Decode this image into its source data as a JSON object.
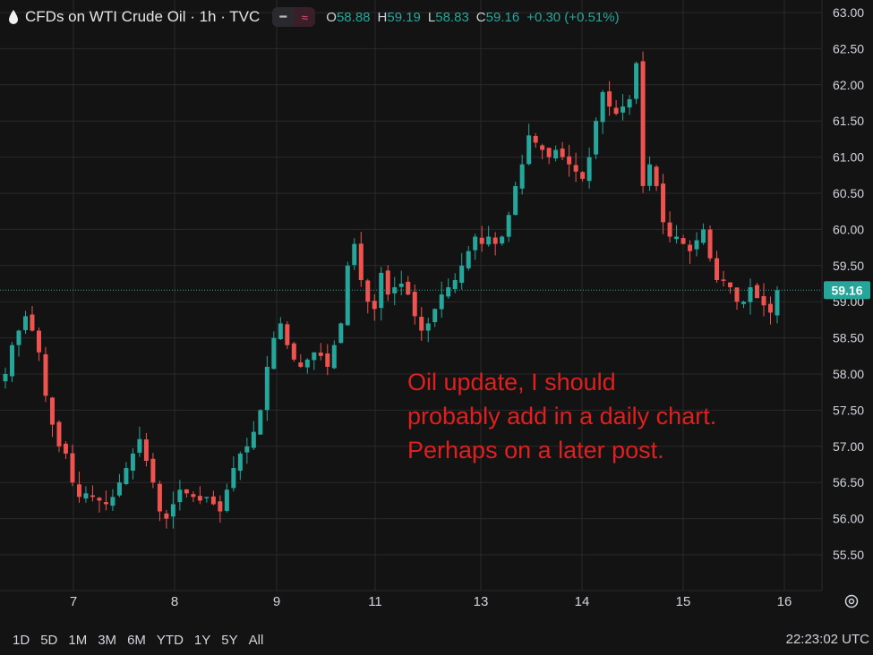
{
  "legend": {
    "title": "CFDs on WTI Crude Oil · 1h · TVC",
    "open_label": "O",
    "open": "58.88",
    "high_label": "H",
    "high": "59.19",
    "low_label": "L",
    "low": "58.83",
    "close_label": "C",
    "close": "59.16",
    "change": "+0.30 (+0.51%)"
  },
  "annotation": [
    "Oil update, I should",
    "probably add in a daily chart.",
    "Perhaps on a later post."
  ],
  "bottom_bar": {
    "ranges": [
      "1D",
      "5D",
      "1M",
      "3M",
      "6M",
      "YTD",
      "1Y",
      "5Y",
      "All"
    ],
    "clock": "22:23:02 UTC"
  },
  "colors": {
    "up": "#26a69a",
    "down": "#ef5350",
    "background": "#131313",
    "grid": "#2a2a2a",
    "price_badge": "#26a69a",
    "annotation": "#e01f1f"
  },
  "chart_data": {
    "type": "candlestick",
    "title": "CFDs on WTI Crude Oil · 1h · TVC",
    "ylim": [
      55.2,
      63.0
    ],
    "y_ticks": [
      "63.00",
      "62.50",
      "62.00",
      "61.50",
      "61.00",
      "60.50",
      "60.00",
      "59.50",
      "59.00",
      "58.50",
      "58.00",
      "57.50",
      "57.00",
      "56.50",
      "56.00",
      "55.50"
    ],
    "x_ticks": [
      "7",
      "8",
      "9",
      "11",
      "13",
      "14",
      "15",
      "16"
    ],
    "last_price": "59.16",
    "series": [
      {
        "values": [
          58.0,
          58.4,
          58.6,
          58.8,
          58.6,
          58.3,
          57.7,
          57.3,
          57.0,
          56.9,
          56.5,
          56.3,
          56.35,
          56.3,
          56.25,
          56.2,
          56.3,
          56.5,
          56.7,
          56.9,
          57.1,
          56.8,
          56.5,
          56.1,
          56.0,
          56.2,
          56.4,
          56.35,
          56.3,
          56.25,
          56.3,
          56.2,
          56.1,
          56.4,
          56.7,
          56.9,
          57.0,
          57.2,
          57.5,
          58.1,
          58.5,
          58.7,
          58.4,
          58.2,
          58.1,
          58.2,
          58.3,
          58.25,
          58.1,
          58.4,
          58.7,
          59.5,
          59.8,
          59.3,
          59.0,
          58.9,
          59.4,
          59.1,
          59.2,
          59.25,
          59.1,
          58.8,
          58.6,
          58.7,
          58.9,
          59.1,
          59.2,
          59.3,
          59.5,
          59.7,
          59.9,
          59.8,
          59.9,
          59.8,
          59.9,
          60.2,
          60.6,
          60.9,
          61.3,
          61.2,
          61.1,
          61.0,
          61.1,
          61.0,
          60.9,
          60.8,
          60.7,
          61.0,
          61.5,
          61.9,
          61.7,
          61.6,
          61.7,
          61.8,
          62.3,
          60.6,
          60.9,
          60.6,
          60.1,
          59.9,
          59.9,
          59.8,
          59.7,
          59.85,
          60.0,
          59.6,
          59.3,
          59.3,
          59.2,
          59.0,
          59.0,
          59.2,
          59.05,
          58.95,
          58.85,
          59.16
        ]
      }
    ]
  }
}
